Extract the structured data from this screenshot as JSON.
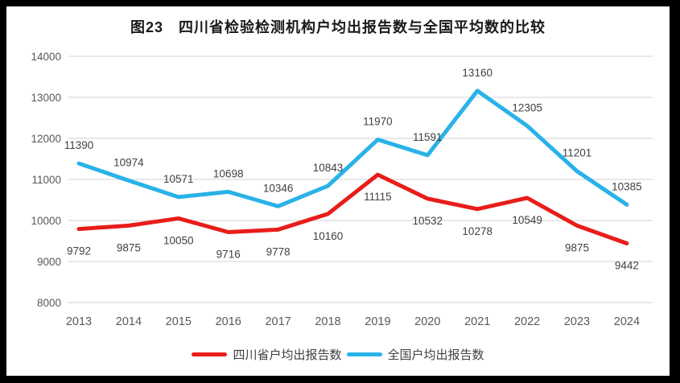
{
  "frame": {
    "border_color": "#000000",
    "content_background": "#ffffff"
  },
  "chart_data": {
    "type": "line",
    "title": "图23　四川省检验检测机构户均出报告数与全国平均数的比较",
    "categories": [
      "2013",
      "2014",
      "2015",
      "2016",
      "2017",
      "2018",
      "2019",
      "2020",
      "2021",
      "2022",
      "2023",
      "2024"
    ],
    "xlabel": "",
    "ylabel": "",
    "ylim": [
      8000,
      14000
    ],
    "yticks": [
      8000,
      9000,
      10000,
      11000,
      12000,
      13000,
      14000
    ],
    "grid": true,
    "legend_position": "bottom",
    "series": [
      {
        "name": "四川省户均出报告数",
        "color": "#e81d1a",
        "label_position": "below",
        "values": [
          9792,
          9875,
          10050,
          9716,
          9778,
          10160,
          11115,
          10532,
          10278,
          10549,
          9875,
          9442
        ]
      },
      {
        "name": "全国户均出报告数",
        "color": "#29b2e8",
        "label_position": "above",
        "values": [
          11390,
          10974,
          10571,
          10698,
          10346,
          10843,
          11970,
          11591,
          13160,
          12305,
          11201,
          10385
        ]
      }
    ],
    "colors": {
      "grid": "#d9d9d9",
      "axis_text": "#595959",
      "data_label": "#404040"
    }
  }
}
